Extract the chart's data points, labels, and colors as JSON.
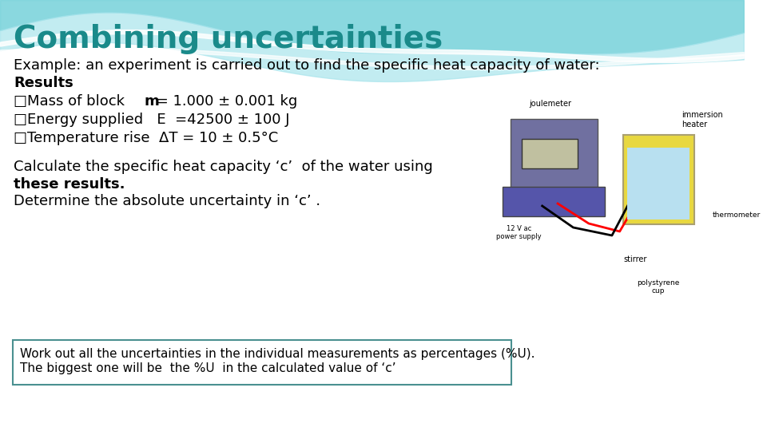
{
  "title": "Combining uncertainties",
  "title_color": "#1a8a8a",
  "title_fontsize": 28,
  "background_color": "#ffffff",
  "header_bg_color": "#7ecfcf",
  "line1": "Example: an experiment is carried out to find the specific heat capacity of water:",
  "line2": "Results",
  "bullet1_prefix": "□Mass of block        ",
  "bullet1_bold": "m",
  "bullet1_rest": " = 1.000 ± 0.001 kg",
  "bullet2_prefix": "□Energy supplied   E  =42500 ± 100 J",
  "bullet3_prefix": "□Temperature rise  ΔT = 10 ± 0.5°C",
  "calc_line1": "Calculate the specific heat capacity ‘c’  of the water using",
  "calc_line2": "these results.",
  "calc_line3": "Determine the absolute uncertainty in ‘c’ .",
  "box_line1": "Work out all the uncertainties in the individual measurements as percentages (%U).",
  "box_line2": "The biggest one will be  the %U  in the calculated value of ‘c’",
  "box_border_color": "#4a9090",
  "body_fontsize": 13,
  "small_fontsize": 11
}
